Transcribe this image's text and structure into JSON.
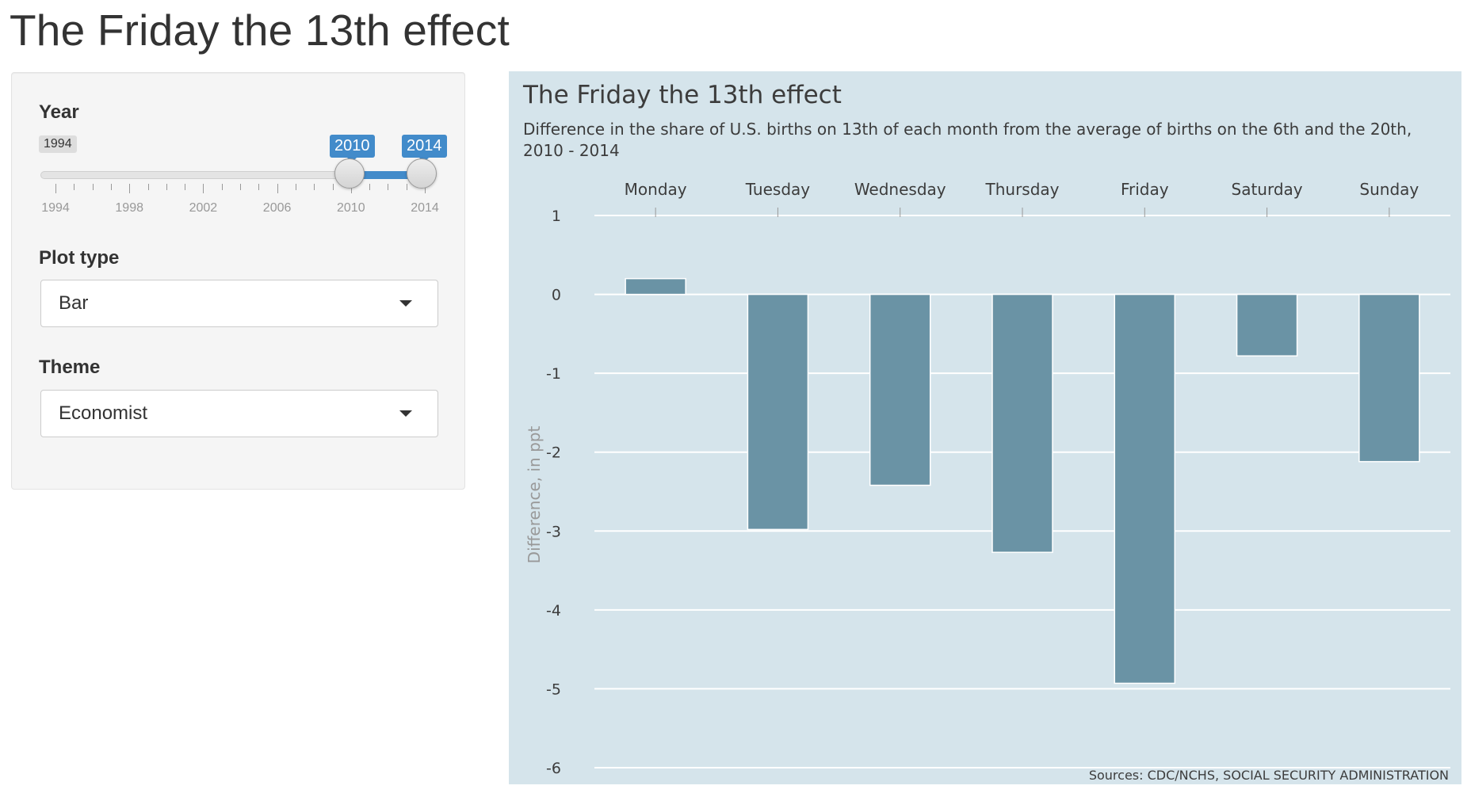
{
  "page": {
    "title": "The Friday the 13th effect"
  },
  "controls": {
    "year": {
      "label": "Year",
      "min": "1994",
      "selected_start": "2010",
      "selected_end": "2014",
      "tick_labels": [
        "1994",
        "1998",
        "2002",
        "2006",
        "2010",
        "2014"
      ]
    },
    "plot_type": {
      "label": "Plot type",
      "value": "Bar"
    },
    "theme": {
      "label": "Theme",
      "value": "Economist"
    }
  },
  "plot": {
    "title": "The Friday the 13th effect",
    "subtitle": "Difference in the share of U.S. births on 13th of each month from the average of births on the 6th and the 20th, 2010 - 2014",
    "source": "Sources: CDC/NCHS, SOCIAL SECURITY ADMINISTRATION",
    "background_color": "#d5e4eb",
    "bar_color": "#6a93a5",
    "accent_color": "#428bca"
  },
  "chart_data": {
    "type": "bar",
    "title": "The Friday the 13th effect",
    "subtitle": "Difference in the share of U.S. births on 13th of each month from the average of births on the 6th and the 20th, 2010 - 2014",
    "categories": [
      "Monday",
      "Tuesday",
      "Wednesday",
      "Thursday",
      "Friday",
      "Saturday",
      "Sunday"
    ],
    "values": [
      0.2,
      -2.98,
      -2.42,
      -3.27,
      -4.93,
      -0.78,
      -2.12
    ],
    "xlabel": "",
    "ylabel": "Difference, in ppt",
    "ylim": [
      -6,
      1
    ],
    "yticks": [
      1,
      0,
      -1,
      -2,
      -3,
      -4,
      -5,
      -6
    ],
    "grid": true,
    "x_axis_position": "top"
  }
}
